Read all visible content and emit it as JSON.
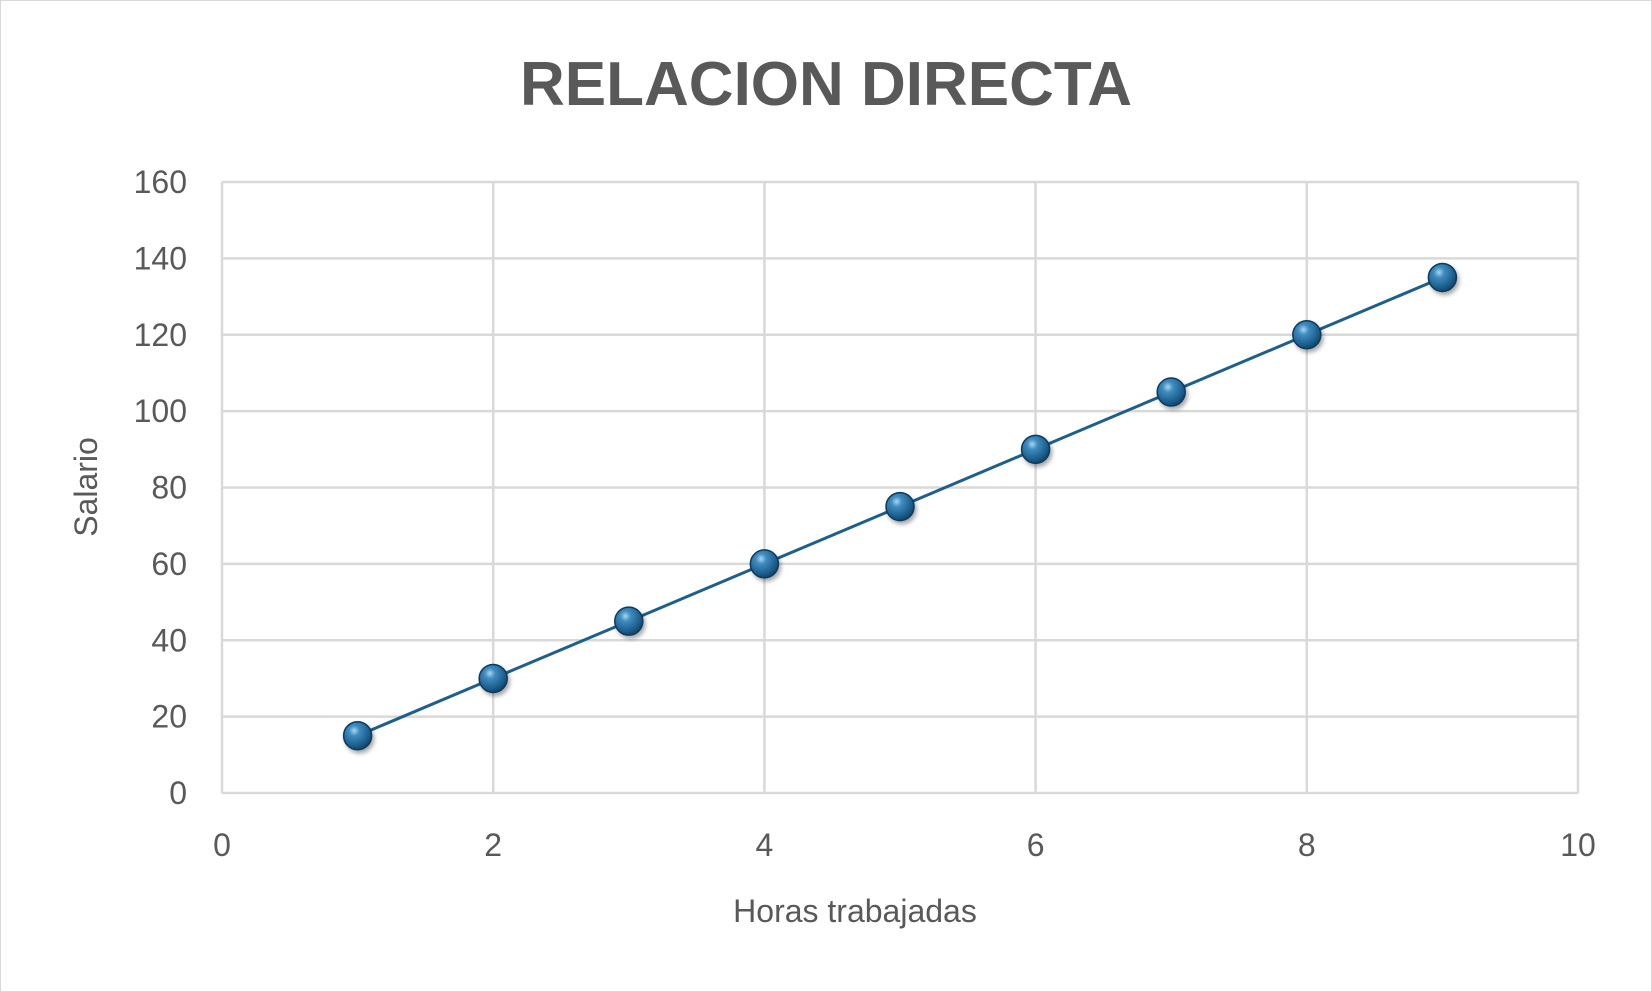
{
  "chart_data": {
    "type": "scatter",
    "title": "RELACION DIRECTA",
    "xlabel": "Horas trabajadas",
    "ylabel": "Salario",
    "xlim": [
      0,
      10
    ],
    "ylim": [
      0,
      160
    ],
    "x_ticks": [
      "0",
      "2",
      "4",
      "6",
      "8",
      "10"
    ],
    "y_ticks": [
      "0",
      "20",
      "40",
      "60",
      "80",
      "100",
      "120",
      "140",
      "160"
    ],
    "grid": true,
    "legend": "none",
    "series": [
      {
        "x": [
          1,
          2,
          3,
          4,
          5,
          6,
          7,
          8,
          9
        ],
        "y": [
          15,
          30,
          45,
          60,
          75,
          90,
          105,
          120,
          135
        ],
        "color": "#1f5f8b"
      }
    ]
  }
}
